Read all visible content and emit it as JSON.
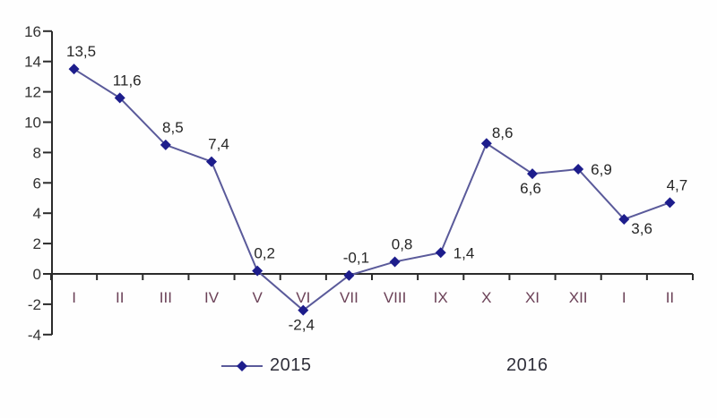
{
  "chart_data": {
    "type": "line",
    "categories": [
      "I",
      "II",
      "III",
      "IV",
      "V",
      "VI",
      "VII",
      "VIII",
      "IX",
      "X",
      "XI",
      "XII",
      "I",
      "II"
    ],
    "series": [
      {
        "name": "2015",
        "values": [
          13.5,
          11.6,
          8.5,
          7.4,
          0.2,
          -2.4,
          -0.1,
          0.8,
          1.4,
          8.6,
          6.6,
          6.9,
          3.6,
          4.7
        ],
        "point_labels": [
          "13,5",
          "11,6",
          "8,5",
          "7,4",
          "0,2",
          "-2,4",
          "-0,1",
          "0,8",
          "1,4",
          "8,6",
          "6,6",
          "6,9",
          "3,6",
          "4,7"
        ],
        "label_positions": [
          "above",
          "above",
          "above",
          "above",
          "above",
          "below",
          "above",
          "above",
          "right",
          "above-right",
          "below",
          "right",
          "below-right",
          "above"
        ],
        "line_color": "#5a5a9a",
        "marker_color": "#1d1d8c",
        "marker": "diamond"
      }
    ],
    "legend": [
      {
        "label": "2015",
        "marker": "diamond-line"
      },
      {
        "label": "2016",
        "marker": "none"
      }
    ],
    "legend_position": "bottom",
    "grid": false,
    "ylim": [
      -4,
      16
    ],
    "yticks": [
      16,
      14,
      12,
      10,
      8,
      6,
      4,
      2,
      0,
      -2,
      -4
    ],
    "axis_color": "#2b2b2b",
    "x_label_color": "#6b4157",
    "y_label_color": "#333333",
    "data_label_color": "#262626"
  }
}
